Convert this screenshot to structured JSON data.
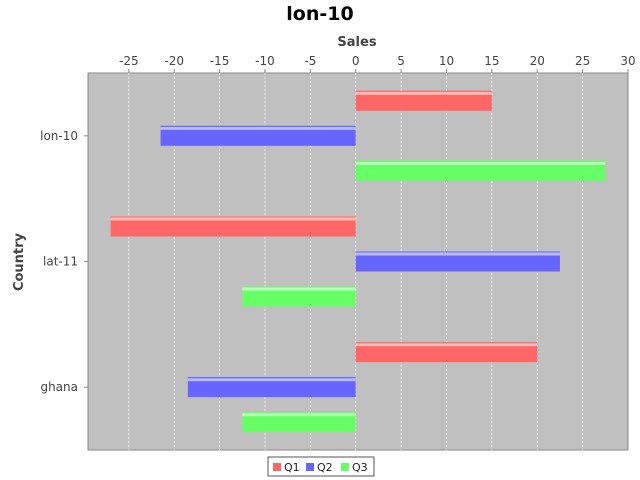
{
  "chart_data": {
    "type": "bar",
    "orientation": "horizontal",
    "title": "lon-10",
    "xlabel": "Sales",
    "ylabel": "Country",
    "categories": [
      "lon-10",
      "lat-11",
      "ghana"
    ],
    "series": [
      {
        "name": "Q1",
        "color": "#ff6666",
        "values": [
          15,
          -27,
          20
        ]
      },
      {
        "name": "Q2",
        "color": "#6666ff",
        "values": [
          -21.5,
          22.5,
          -18.5
        ]
      },
      {
        "name": "Q3",
        "color": "#66ff66",
        "values": [
          27.5,
          -12.5,
          -12.5
        ]
      }
    ],
    "xlim": [
      -29.5,
      30
    ],
    "xticks": [
      -25,
      -20,
      -15,
      -10,
      -5,
      0,
      5,
      10,
      15,
      20,
      25,
      30
    ],
    "x_axis_position": "top",
    "grid": true,
    "legend": "bottom-center"
  }
}
